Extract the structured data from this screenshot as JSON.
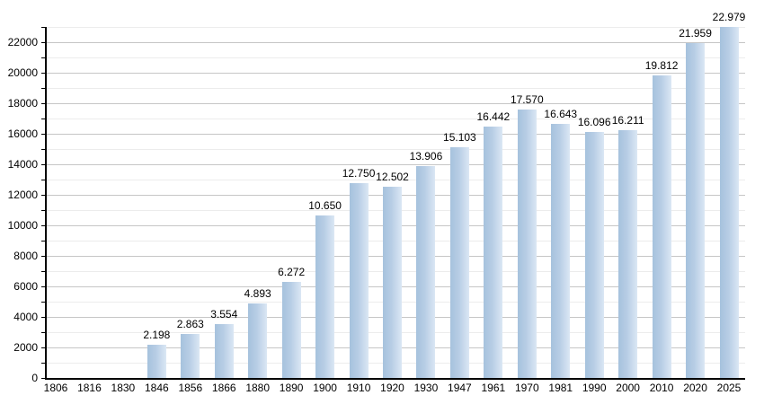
{
  "chart_data": {
    "type": "bar",
    "title": "",
    "xlabel": "",
    "ylabel": "",
    "categories": [
      "1806",
      "1816",
      "1830",
      "1846",
      "1856",
      "1866",
      "1880",
      "1890",
      "1900",
      "1910",
      "1920",
      "1930",
      "1947",
      "1961",
      "1970",
      "1981",
      "1990",
      "2000",
      "2010",
      "2020",
      "2025"
    ],
    "values": [
      null,
      null,
      null,
      2198,
      2863,
      3554,
      4893,
      6272,
      10650,
      12750,
      12502,
      13906,
      15103,
      16442,
      17570,
      16643,
      16096,
      16211,
      19812,
      21959,
      22979
    ],
    "value_labels": [
      "",
      "",
      "",
      "2.198",
      "2.863",
      "3.554",
      "4.893",
      "6.272",
      "10.650",
      "12.750",
      "12.502",
      "13.906",
      "15.103",
      "16.442",
      "17.570",
      "16.643",
      "16.096",
      "16.211",
      "19.812",
      "21.959",
      "22.979"
    ],
    "ylim": [
      0,
      23000
    ],
    "ytick_major_step": 2000,
    "ytick_minor_step": 1000,
    "ytick_labels": [
      "0",
      "2000",
      "4000",
      "6000",
      "8000",
      "10000",
      "12000",
      "14000",
      "16000",
      "18000",
      "20000",
      "22000"
    ],
    "grid": true,
    "legend_position": "none",
    "colors": {
      "background": "#ffffff",
      "bar_edge": "#a6c2dd",
      "bar_mid": "#b7cde5",
      "bar_light": "#dbe7f4",
      "grid_major": "#c6c6c6",
      "grid_minor": "#ececec",
      "axis": "#000000",
      "text": "#000000"
    }
  }
}
